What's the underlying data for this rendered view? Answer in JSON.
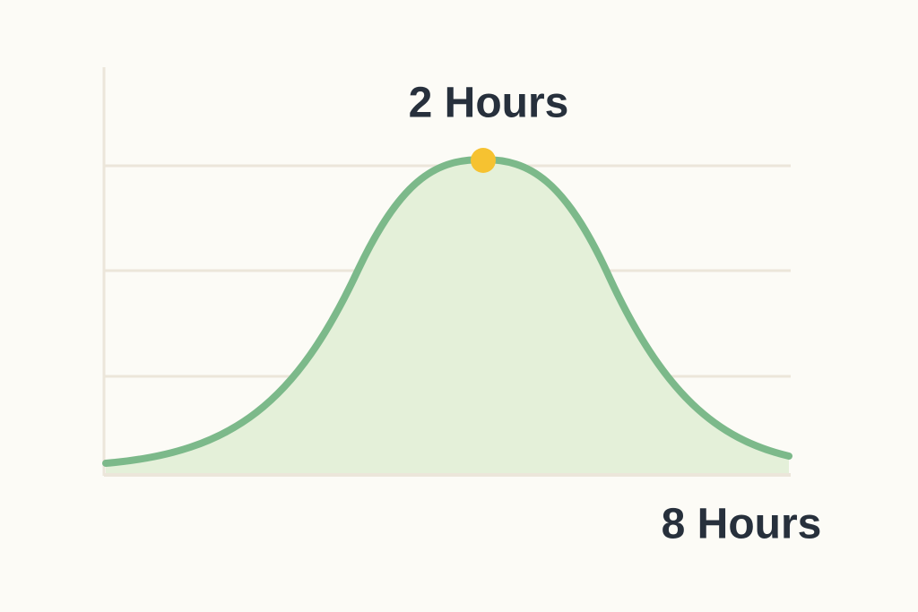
{
  "labels": {
    "peak": "2 Hours",
    "end": "8 Hours"
  }
}
